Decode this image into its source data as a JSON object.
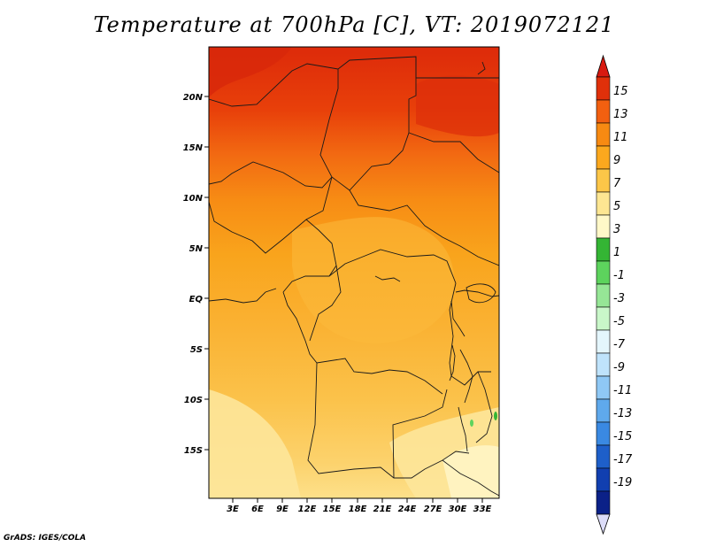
{
  "title": "Temperature at 700hPa [C], VT: 2019072121",
  "credit": "GrADS: IGES/COLA",
  "map": {
    "lat_labels": [
      "20N",
      "15N",
      "10N",
      "5N",
      "EQ",
      "5S",
      "10S",
      "15S"
    ],
    "lon_labels": [
      "3E",
      "6E",
      "9E",
      "12E",
      "15E",
      "18E",
      "21E",
      "24E",
      "27E",
      "30E",
      "33E"
    ]
  },
  "colorbar": {
    "labels": [
      "15",
      "13",
      "11",
      "9",
      "7",
      "5",
      "3",
      "1",
      "-1",
      "-3",
      "-5",
      "-7",
      "-9",
      "-11",
      "-13",
      "-15",
      "-17",
      "-19"
    ],
    "colors": [
      "#e0300a",
      "#f26010",
      "#f78a12",
      "#fba81e",
      "#fcc648",
      "#fde692",
      "#fff8c8",
      "#34b534",
      "#5dd35d",
      "#96e696",
      "#c9f7c9",
      "#e4f6fc",
      "#bfe3fb",
      "#8fc8f5",
      "#5fa9ec",
      "#3a89e2",
      "#1e5fc9",
      "#113fb0",
      "#0b2188"
    ],
    "top_arrow_color": "#d81a10",
    "bottom_arrow_color": "#dcdcf8"
  }
}
